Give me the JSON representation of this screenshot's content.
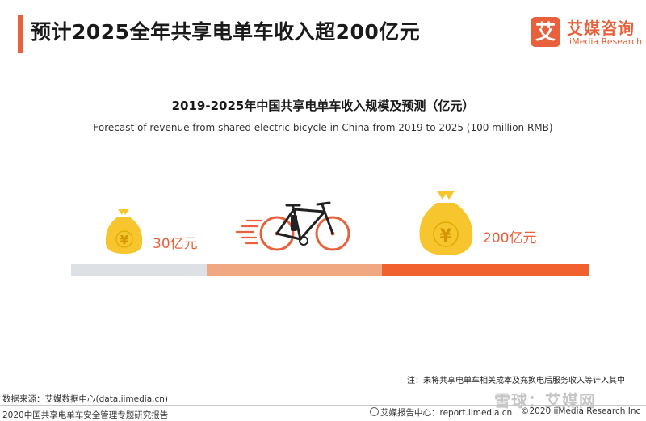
{
  "header": {
    "title": "预计2025全年共享电单车收入超200亿元",
    "logo_mark": "艾",
    "logo_cn": "艾媒咨询",
    "logo_en": "iiMedia Research"
  },
  "chart_data": {
    "type": "bar",
    "title": "2019-2025年中国共享电单车收入规模及预测（亿元）",
    "subtitle": "Forecast of revenue from shared electric bicycle in China from 2019 to 2025 (100 million RMB)",
    "start": {
      "year": 2019,
      "value": 30,
      "label": "30亿元"
    },
    "end": {
      "year": 2025,
      "value": 200,
      "label": "200亿元"
    },
    "currency_symbol": "¥",
    "colors": {
      "accent": "#e8613c",
      "bar_start": "#dde1e6",
      "bar_mid": "#f0a882",
      "bar_end": "#f0612f",
      "money_bag": "#f7c62f"
    }
  },
  "footer": {
    "note": "注：未将共享电单车相关成本及充换电后服务收入等计入其中",
    "source": "数据来源：艾媒数据中心(data.iimedia.cn)",
    "report_name": "2020中国共享电单车安全管理专题研究报告",
    "report_center": "艾媒报告中心：report.iimedia.cn",
    "copyright": "©2020  iiMedia Research  Inc",
    "watermark": "雪球：艾媒网"
  }
}
